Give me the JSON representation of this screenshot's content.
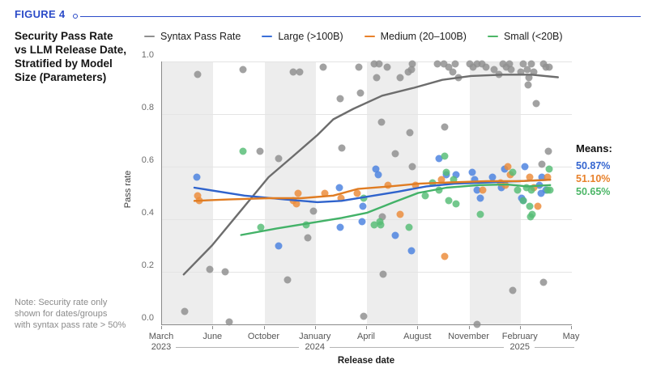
{
  "header": {
    "figure_label": "FIGURE 4",
    "title_lines": [
      "Security Pass Rate",
      "vs LLM Release Date,",
      "Stratified by Model",
      "Size (Parameters)"
    ]
  },
  "note": {
    "lines": [
      "Note: Security rate only",
      "shown for dates/groups",
      "with syntax pass rate > 50%"
    ]
  },
  "legend": [
    {
      "label": "Syntax Pass Rate",
      "color": "#8f8f8f"
    },
    {
      "label": "Large (>100B)",
      "color": "#3a6fd8"
    },
    {
      "label": "Medium (20–100B)",
      "color": "#e8812b"
    },
    {
      "label": "Small (<20B)",
      "color": "#4cb667"
    }
  ],
  "means": {
    "label": "Means:",
    "values": [
      {
        "text": "50.87%",
        "color": "#3465d0"
      },
      {
        "text": "51.10%",
        "color": "#e8812b"
      },
      {
        "text": "50.65%",
        "color": "#4cb667"
      }
    ]
  },
  "colors": {
    "accent": "#2b4bc8",
    "band": "#ededed",
    "grid": "#e4e4e4",
    "axis": "#8a8a8a"
  },
  "chart_data": {
    "type": "scatter",
    "title": "Security Pass Rate vs LLM Release Date, Stratified by Model Size (Parameters)",
    "xlabel": "Release date",
    "ylabel": "Pass rate",
    "ylim": [
      0.0,
      1.0
    ],
    "grid": true,
    "legend_position": "top",
    "y_ticks": [
      {
        "label": "1.0",
        "value": 1.0
      },
      {
        "label": "0.8",
        "value": 0.8
      },
      {
        "label": "0.6",
        "value": 0.6
      },
      {
        "label": "0.4",
        "value": 0.4
      },
      {
        "label": "0.2",
        "value": 0.2
      },
      {
        "label": "0.0",
        "value": 0.0
      }
    ],
    "x_ticks": [
      {
        "month": "March",
        "year": "2023"
      },
      {
        "month": "June"
      },
      {
        "month": "October"
      },
      {
        "month": "January",
        "year": "2024"
      },
      {
        "month": "April"
      },
      {
        "month": "August"
      },
      {
        "month": "November"
      },
      {
        "month": "February",
        "year": "2025"
      },
      {
        "month": "May"
      }
    ],
    "shaded_bands_x": [
      [
        0,
        0.125
      ],
      [
        0.25,
        0.375
      ],
      [
        0.5,
        0.625
      ],
      [
        0.75,
        0.875
      ]
    ],
    "series": [
      {
        "name": "Syntax Pass Rate",
        "dot_color": "#8f8f8f",
        "line_color": "#6d6d6d",
        "points": [
          [
            0.055,
            0.05
          ],
          [
            0.087,
            0.95
          ],
          [
            0.116,
            0.21
          ],
          [
            0.154,
            0.2
          ],
          [
            0.164,
            0.01
          ],
          [
            0.197,
            0.97
          ],
          [
            0.239,
            0.66
          ],
          [
            0.284,
            0.63
          ],
          [
            0.306,
            0.17
          ],
          [
            0.32,
            0.96
          ],
          [
            0.335,
            0.96
          ],
          [
            0.355,
            0.33
          ],
          [
            0.369,
            0.43
          ],
          [
            0.394,
            0.98
          ],
          [
            0.434,
            0.86
          ],
          [
            0.438,
            0.67
          ],
          [
            0.481,
            0.98
          ],
          [
            0.485,
            0.88
          ],
          [
            0.493,
            0.03
          ],
          [
            0.517,
            0.99
          ],
          [
            0.523,
            0.94
          ],
          [
            0.529,
            0.99
          ],
          [
            0.535,
            0.77
          ],
          [
            0.538,
            0.41
          ],
          [
            0.54,
            0.19
          ],
          [
            0.55,
            0.98
          ],
          [
            0.57,
            0.65
          ],
          [
            0.582,
            0.94
          ],
          [
            0.6,
            0.96
          ],
          [
            0.604,
            0.73
          ],
          [
            0.609,
            0.97
          ],
          [
            0.611,
            0.99
          ],
          [
            0.611,
            0.6
          ],
          [
            0.671,
            0.99
          ],
          [
            0.688,
            0.99
          ],
          [
            0.69,
            0.75
          ],
          [
            0.7,
            0.98
          ],
          [
            0.71,
            0.96
          ],
          [
            0.716,
            0.99
          ],
          [
            0.724,
            0.94
          ],
          [
            0.75,
            0.99
          ],
          [
            0.759,
            0.98
          ],
          [
            0.769,
            0.99
          ],
          [
            0.769,
            0.0
          ],
          [
            0.781,
            0.99
          ],
          [
            0.791,
            0.98
          ],
          [
            0.811,
            0.97
          ],
          [
            0.822,
            0.95
          ],
          [
            0.832,
            0.99
          ],
          [
            0.84,
            0.98
          ],
          [
            0.848,
            0.99
          ],
          [
            0.852,
            0.97
          ],
          [
            0.856,
            0.13
          ],
          [
            0.876,
            0.96
          ],
          [
            0.882,
            0.99
          ],
          [
            0.892,
            0.97
          ],
          [
            0.894,
            0.91
          ],
          [
            0.896,
            0.94
          ],
          [
            0.901,
            0.99
          ],
          [
            0.907,
            0.96
          ],
          [
            0.913,
            0.84
          ],
          [
            0.927,
            0.61
          ],
          [
            0.931,
            0.99
          ],
          [
            0.931,
            0.16
          ],
          [
            0.937,
            0.98
          ],
          [
            0.943,
            0.66
          ],
          [
            0.945,
            0.98
          ]
        ],
        "trend": [
          [
            0.053,
            0.19
          ],
          [
            0.122,
            0.3
          ],
          [
            0.191,
            0.43
          ],
          [
            0.26,
            0.56
          ],
          [
            0.32,
            0.64
          ],
          [
            0.379,
            0.72
          ],
          [
            0.418,
            0.78
          ],
          [
            0.467,
            0.82
          ],
          [
            0.537,
            0.87
          ],
          [
            0.615,
            0.9
          ],
          [
            0.684,
            0.93
          ],
          [
            0.754,
            0.945
          ],
          [
            0.832,
            0.95
          ],
          [
            0.901,
            0.95
          ],
          [
            0.966,
            0.94
          ]
        ]
      },
      {
        "name": "Large (>100B)",
        "dot_color": "#4b82e0",
        "line_color": "#2f63cc",
        "points": [
          [
            0.085,
            0.56
          ],
          [
            0.284,
            0.3
          ],
          [
            0.432,
            0.52
          ],
          [
            0.434,
            0.37
          ],
          [
            0.489,
            0.39
          ],
          [
            0.491,
            0.45
          ],
          [
            0.521,
            0.59
          ],
          [
            0.527,
            0.57
          ],
          [
            0.57,
            0.34
          ],
          [
            0.609,
            0.28
          ],
          [
            0.675,
            0.63
          ],
          [
            0.694,
            0.57
          ],
          [
            0.718,
            0.57
          ],
          [
            0.757,
            0.58
          ],
          [
            0.763,
            0.55
          ],
          [
            0.769,
            0.51
          ],
          [
            0.777,
            0.48
          ],
          [
            0.807,
            0.56
          ],
          [
            0.828,
            0.52
          ],
          [
            0.836,
            0.59
          ],
          [
            0.878,
            0.48
          ],
          [
            0.882,
            0.47
          ],
          [
            0.886,
            0.6
          ],
          [
            0.921,
            0.53
          ],
          [
            0.925,
            0.5
          ],
          [
            0.927,
            0.56
          ],
          [
            0.937,
            0.51
          ]
        ],
        "trend": [
          [
            0.079,
            0.52
          ],
          [
            0.201,
            0.49
          ],
          [
            0.3,
            0.475
          ],
          [
            0.379,
            0.465
          ],
          [
            0.438,
            0.47
          ],
          [
            0.497,
            0.485
          ],
          [
            0.576,
            0.505
          ],
          [
            0.645,
            0.525
          ],
          [
            0.714,
            0.535
          ],
          [
            0.793,
            0.54
          ],
          [
            0.872,
            0.545
          ],
          [
            0.947,
            0.55
          ]
        ]
      },
      {
        "name": "Medium (20–100B)",
        "dot_color": "#ec8c3a",
        "line_color": "#e07c22",
        "points": [
          [
            0.087,
            0.49
          ],
          [
            0.091,
            0.47
          ],
          [
            0.32,
            0.47
          ],
          [
            0.329,
            0.46
          ],
          [
            0.333,
            0.5
          ],
          [
            0.398,
            0.5
          ],
          [
            0.436,
            0.48
          ],
          [
            0.477,
            0.5
          ],
          [
            0.552,
            0.53
          ],
          [
            0.582,
            0.42
          ],
          [
            0.619,
            0.53
          ],
          [
            0.681,
            0.55
          ],
          [
            0.69,
            0.26
          ],
          [
            0.783,
            0.51
          ],
          [
            0.826,
            0.54
          ],
          [
            0.838,
            0.53
          ],
          [
            0.844,
            0.6
          ],
          [
            0.85,
            0.57
          ],
          [
            0.897,
            0.56
          ],
          [
            0.907,
            0.52
          ],
          [
            0.917,
            0.45
          ],
          [
            0.941,
            0.56
          ]
        ],
        "trend": [
          [
            0.079,
            0.47
          ],
          [
            0.162,
            0.475
          ],
          [
            0.26,
            0.48
          ],
          [
            0.339,
            0.48
          ],
          [
            0.418,
            0.49
          ],
          [
            0.477,
            0.515
          ],
          [
            0.556,
            0.525
          ],
          [
            0.625,
            0.535
          ],
          [
            0.704,
            0.54
          ],
          [
            0.793,
            0.545
          ],
          [
            0.872,
            0.545
          ],
          [
            0.947,
            0.55
          ]
        ]
      },
      {
        "name": "Small (<20B)",
        "dot_color": "#57bd76",
        "line_color": "#43b268",
        "points": [
          [
            0.197,
            0.66
          ],
          [
            0.241,
            0.37
          ],
          [
            0.351,
            0.38
          ],
          [
            0.493,
            0.48
          ],
          [
            0.517,
            0.38
          ],
          [
            0.531,
            0.39
          ],
          [
            0.533,
            0.38
          ],
          [
            0.602,
            0.37
          ],
          [
            0.643,
            0.49
          ],
          [
            0.661,
            0.54
          ],
          [
            0.675,
            0.51
          ],
          [
            0.69,
            0.64
          ],
          [
            0.694,
            0.58
          ],
          [
            0.7,
            0.47
          ],
          [
            0.712,
            0.55
          ],
          [
            0.718,
            0.46
          ],
          [
            0.777,
            0.42
          ],
          [
            0.856,
            0.58
          ],
          [
            0.868,
            0.51
          ],
          [
            0.882,
            0.47
          ],
          [
            0.89,
            0.52
          ],
          [
            0.897,
            0.45
          ],
          [
            0.899,
            0.41
          ],
          [
            0.901,
            0.51
          ],
          [
            0.903,
            0.42
          ],
          [
            0.941,
            0.51
          ],
          [
            0.945,
            0.59
          ],
          [
            0.947,
            0.51
          ]
        ],
        "trend": [
          [
            0.193,
            0.34
          ],
          [
            0.28,
            0.365
          ],
          [
            0.359,
            0.385
          ],
          [
            0.438,
            0.405
          ],
          [
            0.501,
            0.425
          ],
          [
            0.566,
            0.465
          ],
          [
            0.625,
            0.5
          ],
          [
            0.694,
            0.52
          ],
          [
            0.773,
            0.53
          ],
          [
            0.842,
            0.532
          ],
          [
            0.891,
            0.525
          ],
          [
            0.947,
            0.53
          ]
        ]
      }
    ]
  }
}
